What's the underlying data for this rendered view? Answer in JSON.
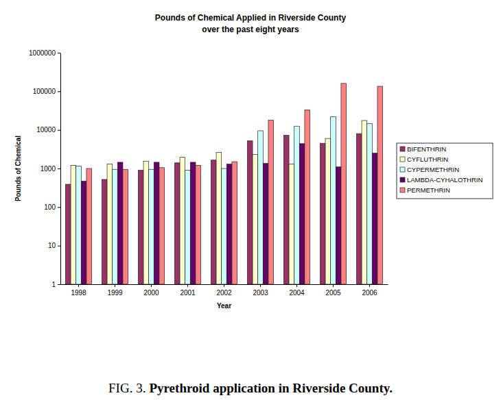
{
  "chart_data": {
    "type": "bar",
    "title": "Pounds of Chemical Applied in Riverside County",
    "subtitle": "over the past eight years",
    "x_label": "Year",
    "y_label": "Pounds of Chemical",
    "figure_label": "FIG. 3.",
    "caption": "Pyrethroid application in Riverside County.",
    "categories": [
      "1998",
      "1999",
      "2000",
      "2001",
      "2002",
      "2003",
      "2004",
      "2005",
      "2006"
    ],
    "series": [
      {
        "name": "BIFENTHRIN",
        "color": "#993366",
        "values": [
          390,
          520,
          900,
          1400,
          1650,
          5200,
          7300,
          4500,
          8000
        ]
      },
      {
        "name": "CYFLUTHRIN",
        "color": "#ffffcc",
        "values": [
          1200,
          1300,
          1550,
          1950,
          2600,
          2300,
          1300,
          6000,
          17500
        ]
      },
      {
        "name": "CYPERMETHRIN",
        "color": "#ccffff",
        "values": [
          1150,
          950,
          950,
          900,
          1000,
          9500,
          12500,
          22000,
          14500
        ]
      },
      {
        "name": "LAMBDA-CYHALOTHRIN",
        "color": "#660066",
        "values": [
          470,
          1450,
          1450,
          1450,
          1300,
          1350,
          4400,
          1100,
          2500
        ]
      },
      {
        "name": "PERMETHRIN",
        "color": "#ff8080",
        "values": [
          1000,
          950,
          1050,
          1200,
          1500,
          18000,
          33000,
          160000,
          135000
        ]
      }
    ],
    "log": "y",
    "ylim": [
      1,
      1000000
    ],
    "yticks": [
      1,
      10,
      100,
      1000,
      10000,
      100000,
      1000000
    ],
    "grid": false,
    "legend": "right"
  }
}
